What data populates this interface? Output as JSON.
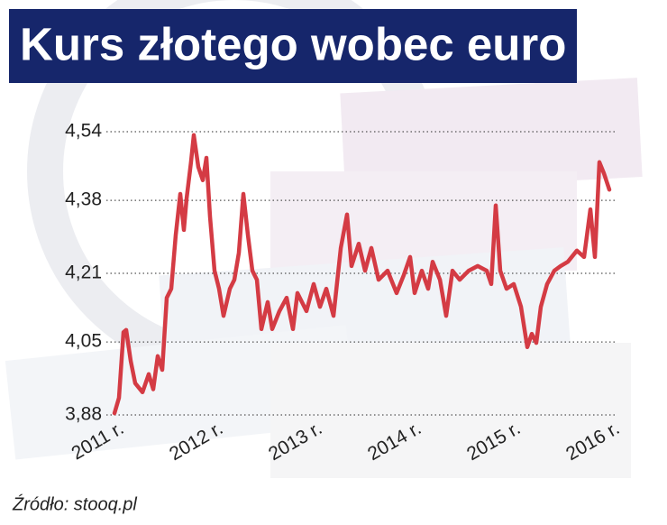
{
  "chart_data": {
    "type": "line",
    "title": "Kurs złotego wobec euro",
    "source": "Źródło: stooq.pl",
    "color": "#d43b44",
    "grid": true,
    "ylim": [
      3.88,
      4.54
    ],
    "yticks": [
      {
        "value": 3.88,
        "label": "3,88"
      },
      {
        "value": 4.05,
        "label": "4,05"
      },
      {
        "value": 4.21,
        "label": "4,21"
      },
      {
        "value": 4.38,
        "label": "4,38"
      },
      {
        "value": 4.54,
        "label": "4,54"
      }
    ],
    "xlim": [
      2010.95,
      2016.05
    ],
    "xticks": [
      {
        "value": 2011,
        "label": "2011 r."
      },
      {
        "value": 2012,
        "label": "2012 r."
      },
      {
        "value": 2013,
        "label": "2013 r."
      },
      {
        "value": 2014,
        "label": "2014 r."
      },
      {
        "value": 2015,
        "label": "2015 r."
      },
      {
        "value": 2016,
        "label": "2016 r."
      }
    ],
    "x": [
      2010.973,
      2011.018,
      2011.064,
      2011.091,
      2011.136,
      2011.182,
      2011.255,
      2011.318,
      2011.364,
      2011.409,
      2011.455,
      2011.5,
      2011.545,
      2011.591,
      2011.636,
      2011.673,
      2011.7,
      2011.745,
      2011.773,
      2011.818,
      2011.864,
      2011.9,
      2011.936,
      2011.982,
      2012.027,
      2012.073,
      2012.136,
      2012.182,
      2012.227,
      2012.273,
      2012.318,
      2012.364,
      2012.409,
      2012.455,
      2012.518,
      2012.564,
      2012.636,
      2012.709,
      2012.773,
      2012.818,
      2012.909,
      2012.982,
      2013.045,
      2013.109,
      2013.182,
      2013.255,
      2013.318,
      2013.364,
      2013.436,
      2013.5,
      2013.564,
      2013.636,
      2013.727,
      2013.818,
      2013.891,
      2013.955,
      2014.0,
      2014.073,
      2014.136,
      2014.182,
      2014.255,
      2014.318,
      2014.382,
      2014.455,
      2014.545,
      2014.636,
      2014.727,
      2014.773,
      2014.818,
      2014.864,
      2014.927,
      2015.0,
      2015.073,
      2015.136,
      2015.182,
      2015.227,
      2015.273,
      2015.336,
      2015.409,
      2015.473,
      2015.545,
      2015.636,
      2015.709,
      2015.773,
      2015.818,
      2015.864,
      2015.909,
      2015.964
    ],
    "values": [
      3.884,
      3.92,
      4.073,
      4.078,
      4.006,
      3.954,
      3.933,
      3.975,
      3.94,
      4.017,
      3.985,
      4.153,
      4.174,
      4.3,
      4.395,
      4.311,
      4.384,
      4.469,
      4.532,
      4.458,
      4.427,
      4.479,
      4.342,
      4.216,
      4.174,
      4.111,
      4.174,
      4.195,
      4.258,
      4.395,
      4.3,
      4.216,
      4.195,
      4.08,
      4.143,
      4.08,
      4.122,
      4.153,
      4.08,
      4.164,
      4.122,
      4.185,
      4.132,
      4.174,
      4.111,
      4.269,
      4.347,
      4.227,
      4.279,
      4.216,
      4.269,
      4.195,
      4.216,
      4.164,
      4.206,
      4.248,
      4.164,
      4.216,
      4.174,
      4.237,
      4.195,
      4.111,
      4.216,
      4.195,
      4.216,
      4.227,
      4.216,
      4.185,
      4.368,
      4.216,
      4.174,
      4.185,
      4.132,
      4.038,
      4.069,
      4.048,
      4.132,
      4.185,
      4.216,
      4.227,
      4.237,
      4.263,
      4.248,
      4.359,
      4.248,
      4.469,
      4.443,
      4.405
    ]
  }
}
